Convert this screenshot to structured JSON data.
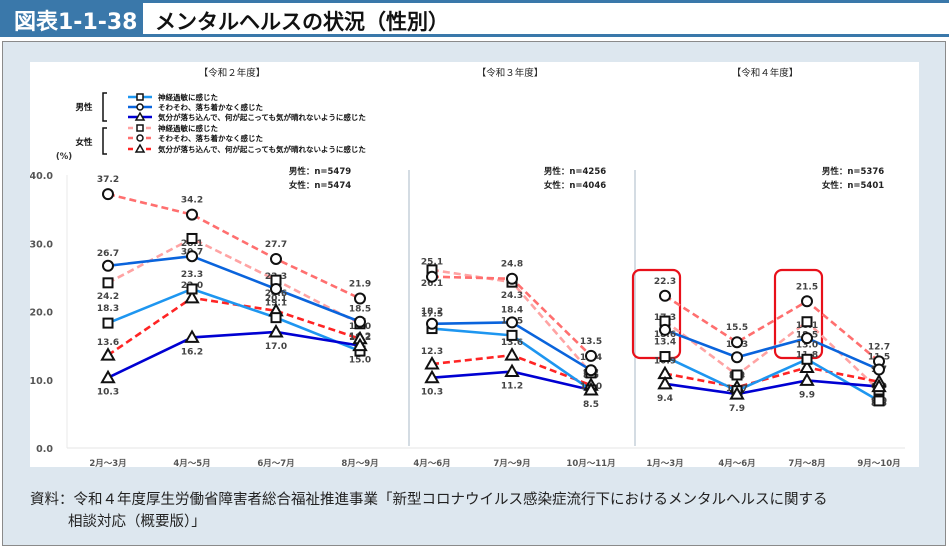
{
  "header": {
    "figure_number": "図表1-1-38",
    "title": "メンタルヘルスの状況（性別）"
  },
  "source": {
    "line1": "資料：令和４年度厚生労働省障害者総合福祉推進事業「新型コロナウイルス感染症流行下におけるメンタルヘルスに関する",
    "line2": "相談対応（概要版）」"
  },
  "chart_data": {
    "type": "line",
    "ylabel": "(%)",
    "ylim": [
      0,
      40
    ],
    "yticks": [
      "0.0",
      "10.0",
      "20.0",
      "30.0",
      "40.0"
    ],
    "ytick_values": [
      0,
      10,
      20,
      30,
      40
    ],
    "grid": false,
    "legend": {
      "placement": "top-left",
      "groups": [
        {
          "label": "男性",
          "entries": [
            "神経過敏に感じた",
            "そわそわ、落ち着かなく感じた",
            "気分が落ち込んで、何が起こっても気が晴れないように感じた"
          ]
        },
        {
          "label": "女性",
          "entries": [
            "神経過敏に感じた",
            "そわそわ、落ち着かなく感じた",
            "気分が落ち込んで、何が起こっても気が晴れないように感じた"
          ]
        }
      ]
    },
    "series_styles": [
      {
        "key": "m_nervous",
        "name": "男性・神経過敏に感じた",
        "color": "#1e96f0",
        "dash": false,
        "marker": "square"
      },
      {
        "key": "m_restless",
        "name": "男性・そわそわ、落ち着かなく感じた",
        "color": "#0a64dc",
        "dash": false,
        "marker": "circle"
      },
      {
        "key": "m_depressed",
        "name": "男性・気分が落ち込んで、何が起こっても気が晴れないように感じた",
        "color": "#0000d2",
        "dash": false,
        "marker": "triangle"
      },
      {
        "key": "f_nervous",
        "name": "女性・神経過敏に感じた",
        "color": "#ffa3a3",
        "dash": true,
        "marker": "square"
      },
      {
        "key": "f_restless",
        "name": "女性・そわそわ、落ち着かなく感じた",
        "color": "#ff6f6f",
        "dash": true,
        "marker": "circle"
      },
      {
        "key": "f_depressed",
        "name": "女性・気分が落ち込んで、何が起こっても気が晴れないように感じた",
        "color": "#ff2424",
        "dash": true,
        "marker": "triangle"
      }
    ],
    "panels": [
      {
        "title": "【令和２年度】",
        "n_male": "男性：n=5479",
        "n_female": "女性：n=5474",
        "categories": [
          "2月～3月",
          "4月～5月",
          "6月～7月",
          "8月～9月"
        ],
        "highlight": [],
        "series": {
          "m_nervous": [
            18.3,
            23.3,
            19.1,
            14.2
          ],
          "m_restless": [
            26.7,
            28.1,
            23.3,
            18.5
          ],
          "m_depressed": [
            10.3,
            16.2,
            17.0,
            15.0
          ],
          "f_nervous": [
            24.2,
            30.7,
            24.6,
            18.2
          ],
          "f_restless": [
            37.2,
            34.2,
            27.7,
            21.9
          ],
          "f_depressed": [
            13.6,
            22.0,
            20.1,
            16.0
          ]
        }
      },
      {
        "title": "【令和３年度】",
        "n_male": "男性：n=4256",
        "n_female": "女性：n=4046",
        "categories": [
          "4月～6月",
          "7月～9月",
          "10月～11月"
        ],
        "highlight": [],
        "series": {
          "m_nervous": [
            17.5,
            16.5,
            8.5
          ],
          "m_restless": [
            18.2,
            18.4,
            11.4
          ],
          "m_depressed": [
            10.3,
            11.2,
            8.5
          ],
          "f_nervous": [
            26.1,
            24.3,
            11.0
          ],
          "f_restless": [
            25.1,
            24.8,
            13.5
          ],
          "f_depressed": [
            12.3,
            13.6,
            9.2
          ]
        }
      },
      {
        "title": "【令和４年度】",
        "n_male": "男性：n=5376",
        "n_female": "女性：n=5401",
        "categories": [
          "1月～3月",
          "4月～6月",
          "7月～8月",
          "9月～10月"
        ],
        "highlight": [
          0,
          2
        ],
        "series": {
          "m_nervous": [
            13.4,
            8.4,
            13.0,
            6.9
          ],
          "m_restless": [
            17.3,
            13.3,
            16.1,
            11.5
          ],
          "m_depressed": [
            9.4,
            7.9,
            9.9,
            9.0
          ],
          "f_nervous": [
            18.6,
            10.7,
            18.5,
            8.5
          ],
          "f_restless": [
            22.3,
            15.5,
            21.5,
            12.7
          ],
          "f_depressed": [
            10.9,
            8.9,
            11.8,
            9.7
          ]
        }
      }
    ]
  }
}
